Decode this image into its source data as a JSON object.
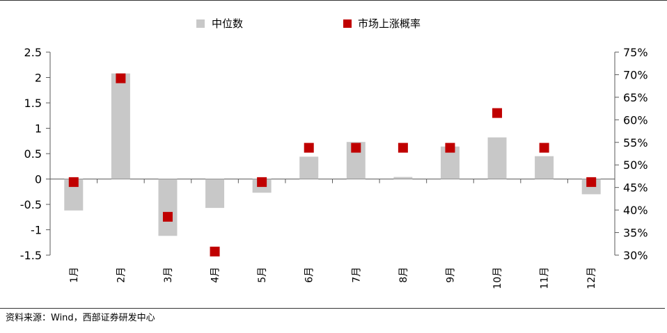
{
  "chart_data": {
    "type": "bar",
    "categories": [
      "1月",
      "2月",
      "3月",
      "4月",
      "5月",
      "6月",
      "7月",
      "8月",
      "9月",
      "10月",
      "11月",
      "12月"
    ],
    "series": [
      {
        "name": "中位数",
        "type": "bar",
        "axis": "left",
        "color": "#c8c8c8",
        "values": [
          -0.62,
          2.08,
          -1.12,
          -0.57,
          -0.27,
          0.44,
          0.73,
          0.04,
          0.64,
          0.82,
          0.45,
          -0.3
        ]
      },
      {
        "name": "市场上涨概率",
        "type": "scatter",
        "axis": "right",
        "marker": "square",
        "color": "#c00000",
        "values": [
          46.2,
          69.2,
          38.5,
          30.8,
          46.2,
          53.8,
          53.8,
          53.8,
          53.8,
          61.5,
          53.8,
          46.2
        ]
      }
    ],
    "y_left": {
      "ylim": [
        -1.5,
        2.5
      ],
      "ticks": [
        -1.5,
        -1,
        -0.5,
        0,
        0.5,
        1,
        1.5,
        2,
        2.5
      ],
      "tick_labels": [
        "-1.5",
        "-1",
        "-0.5",
        "0",
        "0.5",
        "1",
        "1.5",
        "2",
        "2.5"
      ]
    },
    "y_right": {
      "ylim": [
        30,
        75
      ],
      "ticks": [
        30,
        35,
        40,
        45,
        50,
        55,
        60,
        65,
        70,
        75
      ],
      "tick_labels": [
        "30%",
        "35%",
        "40%",
        "45%",
        "50%",
        "55%",
        "60%",
        "65%",
        "70%",
        "75%"
      ]
    },
    "grid": false,
    "legend_position": "top"
  },
  "source_note": "资料来源：Wind，西部证券研发中心"
}
